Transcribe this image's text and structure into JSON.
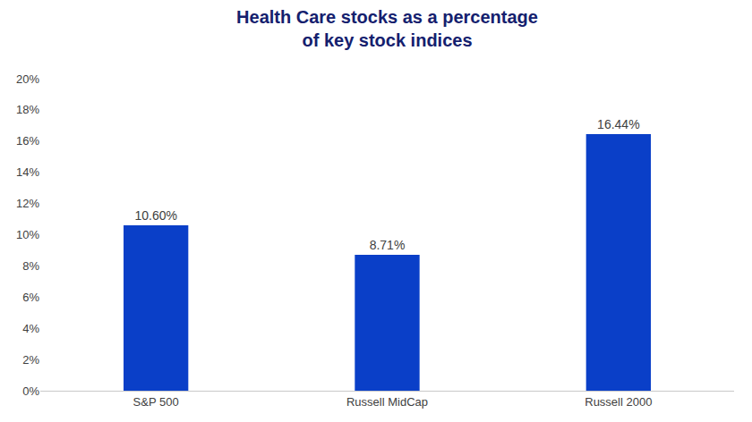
{
  "chart_data": {
    "type": "bar",
    "title": "Health Care stocks as a percentage\nof key stock indices",
    "categories": [
      "S&P 500",
      "Russell MidCap",
      "Russell 2000"
    ],
    "values": [
      10.6,
      8.71,
      16.44
    ],
    "value_labels": [
      "10.60%",
      "8.71%",
      "16.44%"
    ],
    "color": "#0a3fc8",
    "ylim": [
      0,
      20
    ],
    "yticks": [
      {
        "value": 0,
        "label": "0%"
      },
      {
        "value": 2,
        "label": "2%"
      },
      {
        "value": 4,
        "label": "4%"
      },
      {
        "value": 6,
        "label": "6%"
      },
      {
        "value": 8,
        "label": "8%"
      },
      {
        "value": 10,
        "label": "10%"
      },
      {
        "value": 12,
        "label": "12%"
      },
      {
        "value": 14,
        "label": "14%"
      },
      {
        "value": 16,
        "label": "16%"
      },
      {
        "value": 18,
        "label": "18%"
      },
      {
        "value": 20,
        "label": "20%"
      }
    ],
    "grid": false,
    "data_labels": true
  }
}
